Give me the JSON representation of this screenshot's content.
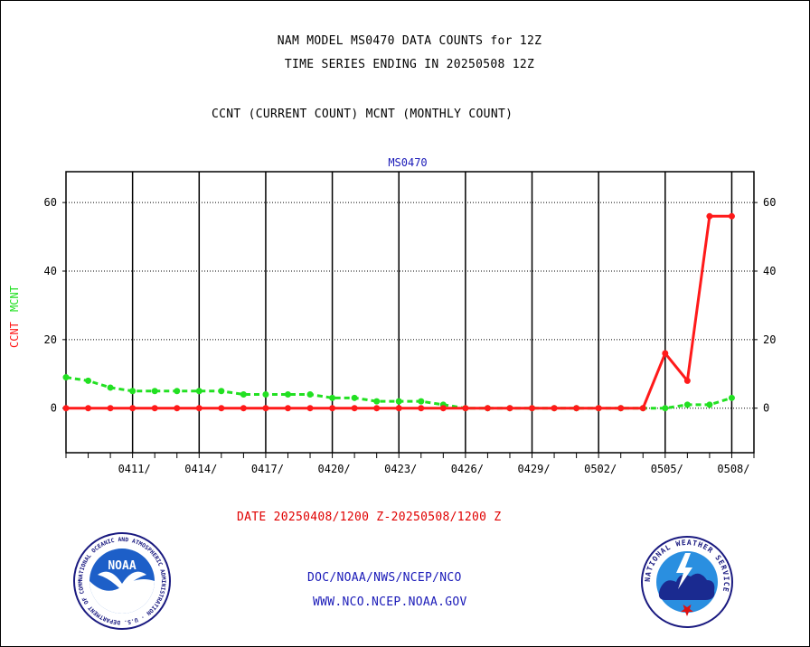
{
  "header": {
    "title_line1": "NAM MODEL MS0470 DATA COUNTS for 12Z",
    "title_line2": "TIME SERIES ENDING IN 20250508 12Z",
    "subtitle": "CCNT (CURRENT COUNT) MCNT (MONTHLY COUNT)"
  },
  "footer": {
    "date_range": "DATE 20250408/1200 Z-20250508/1200 Z",
    "line1": "DOC/NOAA/NWS/NCEP/NCO",
    "line2": "WWW.NCO.NCEP.NOAA.GOV"
  },
  "logos": {
    "noaa": "NOAA",
    "noaa_ring": "NATIONAL OCEANIC AND ATMOSPHERIC ADMINISTRATION · U.S. DEPARTMENT OF COMMERCE ·",
    "nws_ring": "NATIONAL WEATHER SERVICE"
  },
  "colors": {
    "ccnt": "#ff1a1a",
    "mcnt": "#22e022",
    "station": "#1a1ab8",
    "axis": "#000000"
  },
  "chart_data": {
    "type": "line",
    "station_label": "MS0470",
    "ylabel_ccnt": "CCNT",
    "ylabel_mcnt": "MCNT",
    "ylim": [
      -13,
      69
    ],
    "yticks": [
      0,
      20,
      40,
      60
    ],
    "x_range": [
      "2025-04-08",
      "2025-05-08"
    ],
    "xtick_labels": [
      "0411/",
      "0414/",
      "0417/",
      "0420/",
      "0423/",
      "0426/",
      "0429/",
      "0502/",
      "0505/",
      "0508/"
    ],
    "xtick_dates": [
      "2025-04-11",
      "2025-04-14",
      "2025-04-17",
      "2025-04-20",
      "2025-04-23",
      "2025-04-26",
      "2025-04-29",
      "2025-05-02",
      "2025-05-05",
      "2025-05-08"
    ],
    "grid": "horizontal dotted at y-ticks, vertical solid at date ticks",
    "series": [
      {
        "name": "CCNT",
        "color": "#ff1a1a",
        "x": [
          "2025-04-08",
          "2025-04-09",
          "2025-04-10",
          "2025-04-11",
          "2025-04-12",
          "2025-04-13",
          "2025-04-14",
          "2025-04-15",
          "2025-04-16",
          "2025-04-17",
          "2025-04-18",
          "2025-04-19",
          "2025-04-20",
          "2025-04-21",
          "2025-04-22",
          "2025-04-23",
          "2025-04-24",
          "2025-04-25",
          "2025-04-26",
          "2025-04-27",
          "2025-04-28",
          "2025-04-29",
          "2025-04-30",
          "2025-05-01",
          "2025-05-02",
          "2025-05-03",
          "2025-05-04",
          "2025-05-05",
          "2025-05-06",
          "2025-05-07",
          "2025-05-08"
        ],
        "values": [
          0,
          0,
          0,
          0,
          0,
          0,
          0,
          0,
          0,
          0,
          0,
          0,
          0,
          0,
          0,
          0,
          0,
          0,
          0,
          0,
          0,
          0,
          0,
          0,
          0,
          0,
          0,
          16,
          8,
          56,
          56
        ]
      },
      {
        "name": "MCNT",
        "color": "#22e022",
        "x": [
          "2025-04-08",
          "2025-04-09",
          "2025-04-10",
          "2025-04-11",
          "2025-04-12",
          "2025-04-13",
          "2025-04-14",
          "2025-04-15",
          "2025-04-16",
          "2025-04-17",
          "2025-04-18",
          "2025-04-19",
          "2025-04-20",
          "2025-04-21",
          "2025-04-22",
          "2025-04-23",
          "2025-04-24",
          "2025-04-25",
          "2025-04-26",
          "2025-04-27",
          "2025-04-28",
          "2025-04-29",
          "2025-04-30",
          "2025-05-01",
          "2025-05-02",
          "2025-05-03",
          "2025-05-04",
          "2025-05-05",
          "2025-05-06",
          "2025-05-07",
          "2025-05-08"
        ],
        "values": [
          9,
          8,
          6,
          5,
          5,
          5,
          5,
          5,
          4,
          4,
          4,
          4,
          3,
          3,
          2,
          2,
          2,
          1,
          0,
          0,
          0,
          0,
          0,
          0,
          0,
          0,
          0,
          0,
          1,
          1,
          3
        ]
      }
    ]
  }
}
